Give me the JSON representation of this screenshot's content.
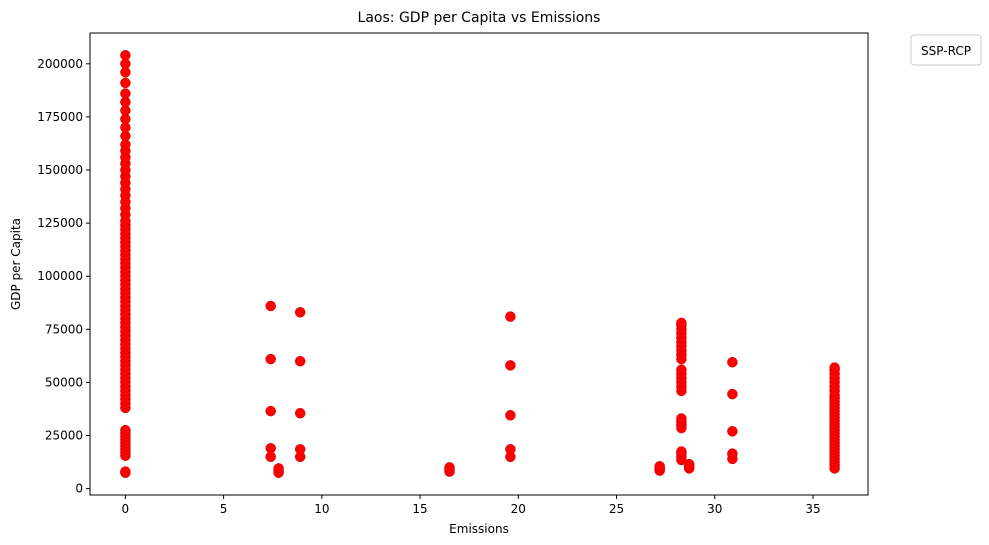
{
  "chart_data": {
    "type": "scatter",
    "title": "Laos: GDP per Capita vs Emissions",
    "xlabel": "Emissions",
    "ylabel": "GDP per Capita",
    "xlim": [
      -1.8,
      37.8
    ],
    "ylim": [
      -3000,
      214500
    ],
    "xticks": [
      0,
      5,
      10,
      15,
      20,
      25,
      30,
      35
    ],
    "yticks": [
      0,
      25000,
      50000,
      75000,
      100000,
      125000,
      150000,
      175000,
      200000
    ],
    "grid": false,
    "legend": {
      "title": "SSP-RCP",
      "position": "outside-top-right",
      "entries": []
    },
    "point_color": "#ff0000",
    "series": [
      {
        "points": [
          [
            0,
            7500
          ],
          [
            0,
            8000
          ],
          [
            0,
            15500
          ],
          [
            0,
            17000
          ],
          [
            0,
            18500
          ],
          [
            0,
            20000
          ],
          [
            0,
            21500
          ],
          [
            0,
            23000
          ],
          [
            0,
            24500
          ],
          [
            0,
            26000
          ],
          [
            0,
            27500
          ],
          [
            0,
            38000
          ],
          [
            0,
            40000
          ],
          [
            0,
            42000
          ],
          [
            0,
            44000
          ],
          [
            0,
            46000
          ],
          [
            0,
            48000
          ],
          [
            0,
            50000
          ],
          [
            0,
            52000
          ],
          [
            0,
            54000
          ],
          [
            0,
            56000
          ],
          [
            0,
            58000
          ],
          [
            0,
            60000
          ],
          [
            0,
            62000
          ],
          [
            0,
            64000
          ],
          [
            0,
            66000
          ],
          [
            0,
            68000
          ],
          [
            0,
            70000
          ],
          [
            0,
            72000
          ],
          [
            0,
            74000
          ],
          [
            0,
            76000
          ],
          [
            0,
            78000
          ],
          [
            0,
            80000
          ],
          [
            0,
            82000
          ],
          [
            0,
            84000
          ],
          [
            0,
            86000
          ],
          [
            0,
            88000
          ],
          [
            0,
            90000
          ],
          [
            0,
            92000
          ],
          [
            0,
            94000
          ],
          [
            0,
            96000
          ],
          [
            0,
            98000
          ],
          [
            0,
            100000
          ],
          [
            0,
            102000
          ],
          [
            0,
            104000
          ],
          [
            0,
            106000
          ],
          [
            0,
            108000
          ],
          [
            0,
            110000
          ],
          [
            0,
            112000
          ],
          [
            0,
            114000
          ],
          [
            0,
            116000
          ],
          [
            0,
            118000
          ],
          [
            0,
            120000
          ],
          [
            0,
            122000
          ],
          [
            0,
            124000
          ],
          [
            0,
            126000
          ],
          [
            0,
            129000
          ],
          [
            0,
            132000
          ],
          [
            0,
            135000
          ],
          [
            0,
            138000
          ],
          [
            0,
            141000
          ],
          [
            0,
            144000
          ],
          [
            0,
            147000
          ],
          [
            0,
            150000
          ],
          [
            0,
            153000
          ],
          [
            0,
            156000
          ],
          [
            0,
            159000
          ],
          [
            0,
            162000
          ],
          [
            0,
            166000
          ],
          [
            0,
            170000
          ],
          [
            0,
            174000
          ],
          [
            0,
            178000
          ],
          [
            0,
            182000
          ],
          [
            0,
            186000
          ],
          [
            0,
            191000
          ],
          [
            0,
            196000
          ],
          [
            0,
            200000
          ],
          [
            0,
            204000
          ],
          [
            7.4,
            15000
          ],
          [
            7.4,
            19000
          ],
          [
            7.4,
            36500
          ],
          [
            7.4,
            61000
          ],
          [
            7.4,
            86000
          ],
          [
            7.8,
            7500
          ],
          [
            7.8,
            8500
          ],
          [
            7.8,
            9500
          ],
          [
            8.9,
            15000
          ],
          [
            8.9,
            18500
          ],
          [
            8.9,
            35500
          ],
          [
            8.9,
            60000
          ],
          [
            8.9,
            83000
          ],
          [
            16.5,
            8000
          ],
          [
            16.5,
            9000
          ],
          [
            16.5,
            10000
          ],
          [
            19.6,
            15000
          ],
          [
            19.6,
            18500
          ],
          [
            19.6,
            34500
          ],
          [
            19.6,
            58000
          ],
          [
            19.6,
            81000
          ],
          [
            27.2,
            8500
          ],
          [
            27.2,
            9500
          ],
          [
            27.2,
            10500
          ],
          [
            28.3,
            13500
          ],
          [
            28.3,
            15000
          ],
          [
            28.3,
            16500
          ],
          [
            28.3,
            17500
          ],
          [
            28.3,
            28500
          ],
          [
            28.3,
            30000
          ],
          [
            28.3,
            31500
          ],
          [
            28.3,
            33000
          ],
          [
            28.3,
            46000
          ],
          [
            28.3,
            48000
          ],
          [
            28.3,
            50000
          ],
          [
            28.3,
            52000
          ],
          [
            28.3,
            54000
          ],
          [
            28.3,
            56000
          ],
          [
            28.3,
            61000
          ],
          [
            28.3,
            63000
          ],
          [
            28.3,
            65000
          ],
          [
            28.3,
            67000
          ],
          [
            28.3,
            69000
          ],
          [
            28.3,
            71000
          ],
          [
            28.3,
            73000
          ],
          [
            28.3,
            75000
          ],
          [
            28.3,
            77000
          ],
          [
            28.3,
            78000
          ],
          [
            28.7,
            9500
          ],
          [
            28.7,
            10500
          ],
          [
            28.7,
            11500
          ],
          [
            30.9,
            14000
          ],
          [
            30.9,
            16500
          ],
          [
            30.9,
            27000
          ],
          [
            30.9,
            44500
          ],
          [
            30.9,
            59500
          ],
          [
            36.1,
            9500
          ],
          [
            36.1,
            11000
          ],
          [
            36.1,
            12500
          ],
          [
            36.1,
            14000
          ],
          [
            36.1,
            15500
          ],
          [
            36.1,
            17000
          ],
          [
            36.1,
            18500
          ],
          [
            36.1,
            20000
          ],
          [
            36.1,
            21500
          ],
          [
            36.1,
            23000
          ],
          [
            36.1,
            24500
          ],
          [
            36.1,
            26000
          ],
          [
            36.1,
            27500
          ],
          [
            36.1,
            29000
          ],
          [
            36.1,
            30500
          ],
          [
            36.1,
            32000
          ],
          [
            36.1,
            33500
          ],
          [
            36.1,
            35000
          ],
          [
            36.1,
            36500
          ],
          [
            36.1,
            38000
          ],
          [
            36.1,
            39500
          ],
          [
            36.1,
            41000
          ],
          [
            36.1,
            42500
          ],
          [
            36.1,
            44000
          ],
          [
            36.1,
            46000
          ],
          [
            36.1,
            48000
          ],
          [
            36.1,
            50000
          ],
          [
            36.1,
            52000
          ],
          [
            36.1,
            54000
          ],
          [
            36.1,
            56000
          ],
          [
            36.1,
            57000
          ]
        ]
      }
    ]
  }
}
